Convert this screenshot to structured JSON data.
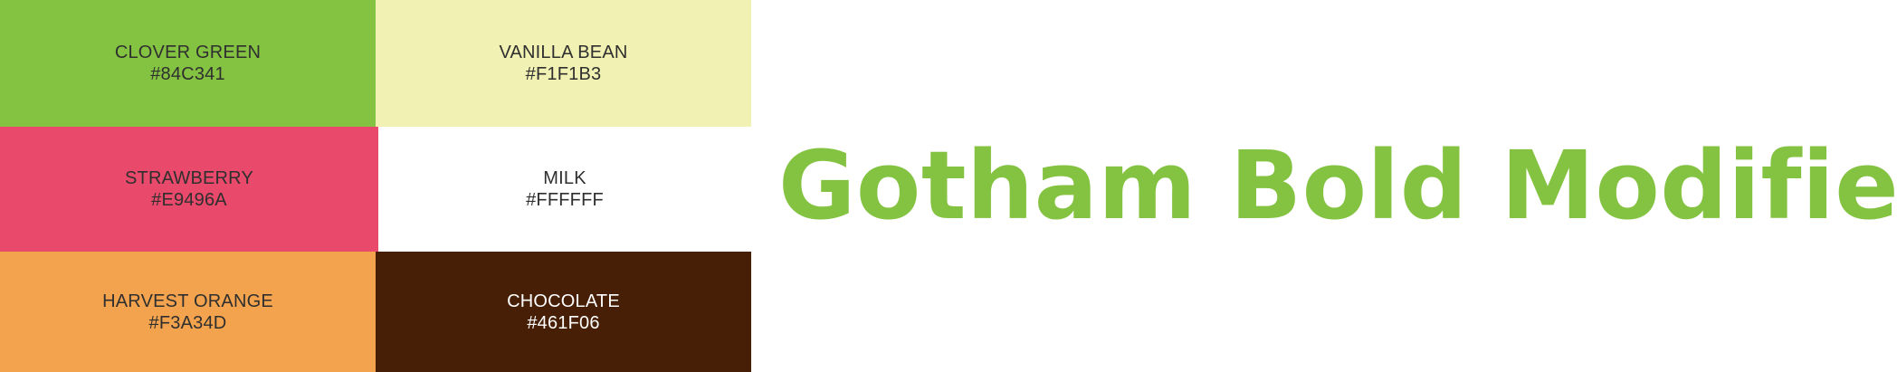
{
  "swatches": [
    {
      "name": "CLOVER GREEN",
      "hex": "#84C341",
      "color": "#84C341",
      "text_color": "#2f2f2f"
    },
    {
      "name": "VANILLA BEAN",
      "hex": "#F1F1B3",
      "color": "#F1F1B3",
      "text_color": "#2f2f2f"
    },
    {
      "name": "STRAWBERRY",
      "hex": "#E9496A",
      "color": "#E9496A",
      "text_color": "#2f2f2f"
    },
    {
      "name": "MILK",
      "hex": "#FFFFFF",
      "color": "#FFFFFF",
      "text_color": "#2f2f2f"
    },
    {
      "name": "HARVEST ORANGE",
      "hex": "#F3A34D",
      "color": "#F3A34D",
      "text_color": "#2f2f2f"
    },
    {
      "name": "CHOCOLATE",
      "hex": "#461F06",
      "color": "#461F06",
      "text_color": "#ffffff"
    }
  ],
  "font_sample": {
    "text": "Gotham Bold Modified",
    "color": "#84C341"
  }
}
